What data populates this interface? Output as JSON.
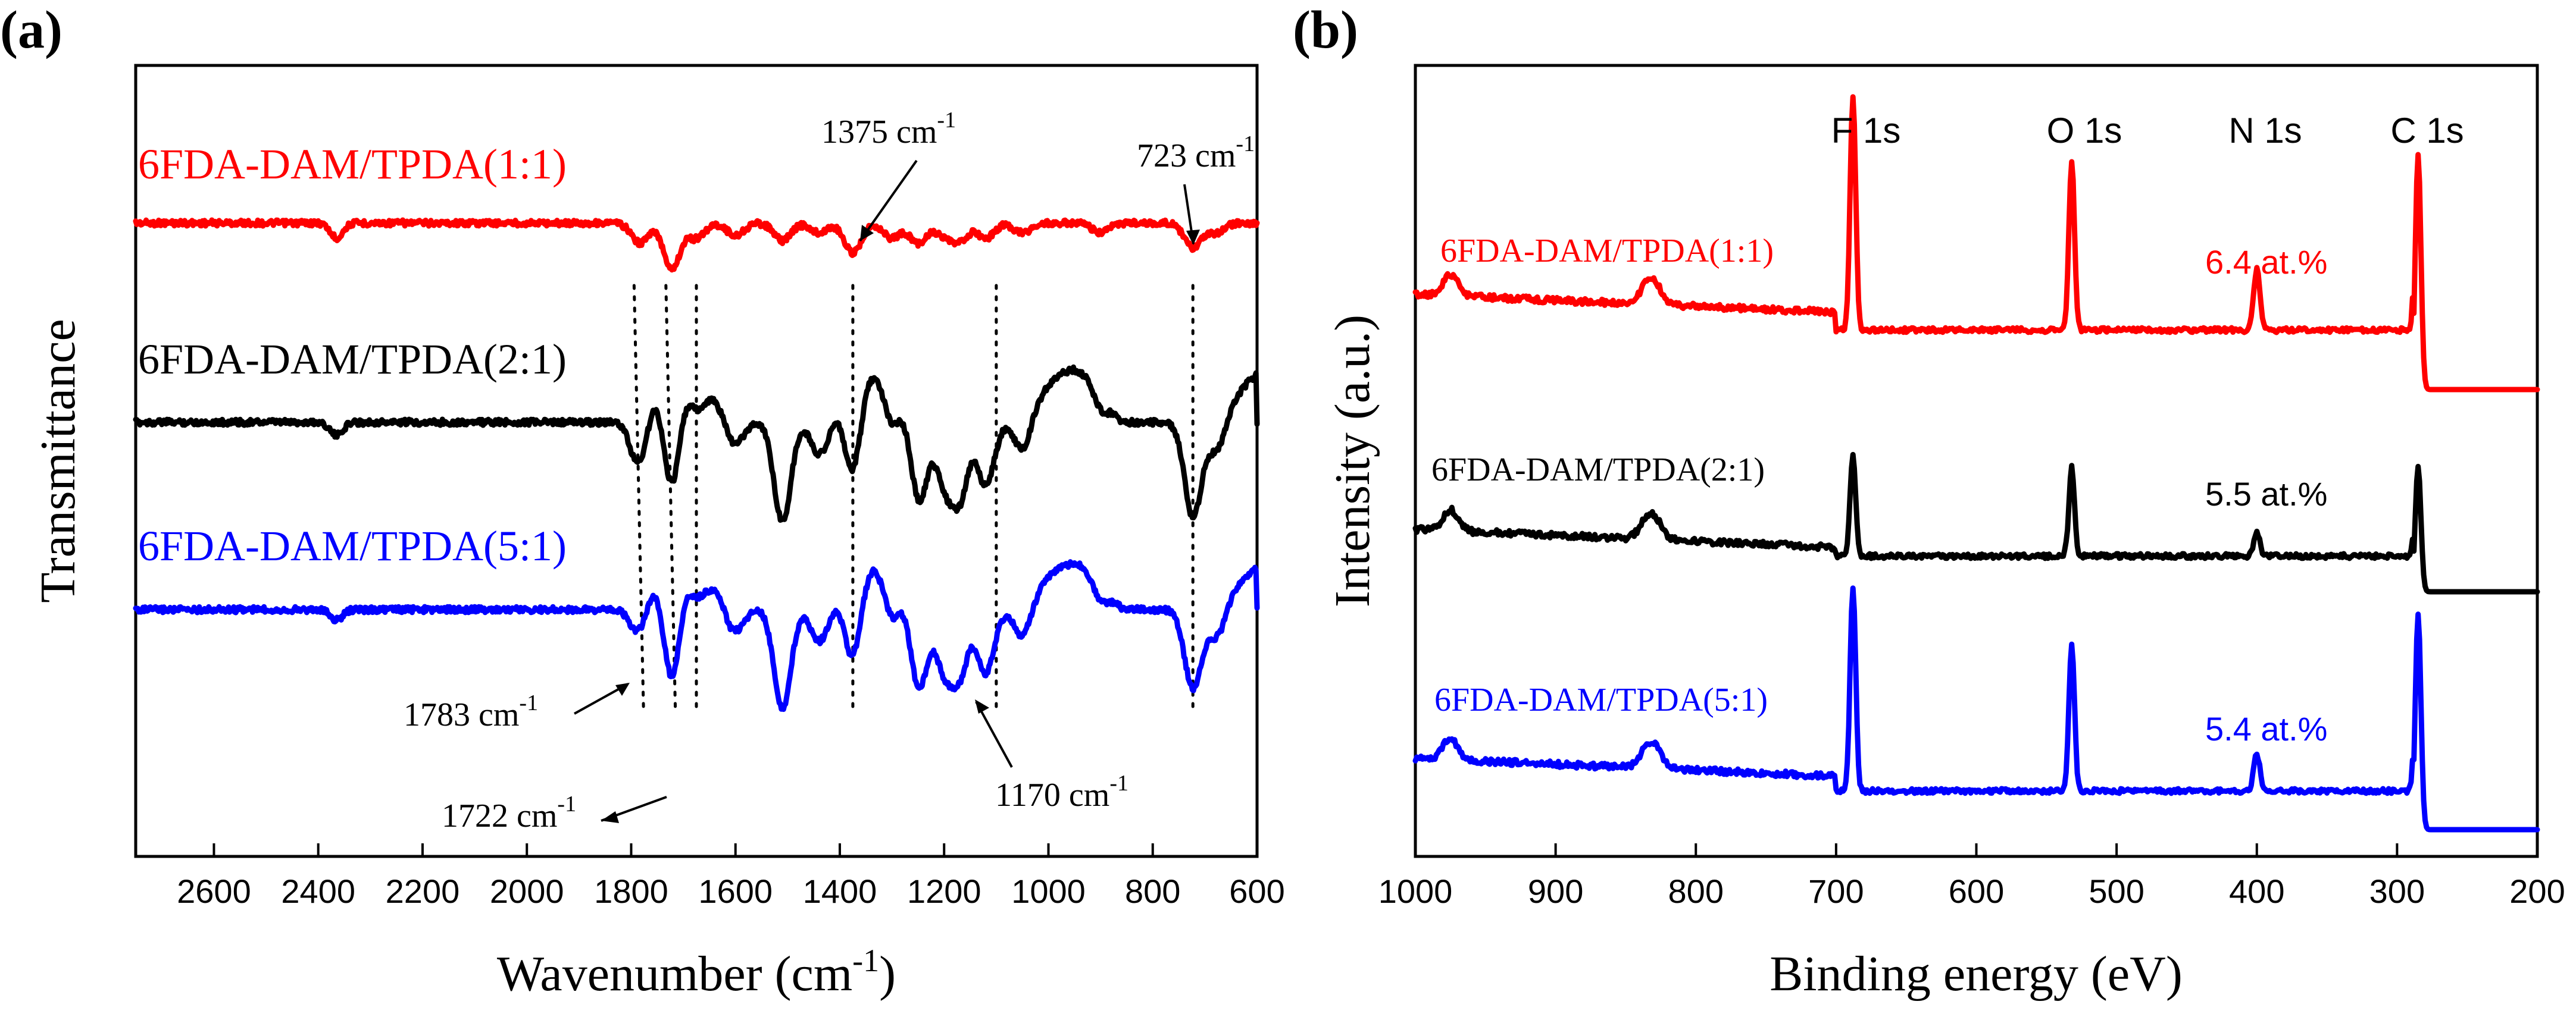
{
  "chart_data": [
    {
      "panel": "(a)",
      "type": "line",
      "xlabel": "Wavenumber (cm",
      "xlabel_sup": "-1",
      "xlabel_close": ")",
      "ylabel": "Transmittance",
      "xlim": [
        2750,
        600
      ],
      "xticks": [
        2600,
        2400,
        2200,
        2000,
        1800,
        1600,
        1400,
        1200,
        1000,
        800,
        600
      ],
      "series": [
        {
          "name": "6FDA-DAM/TPDA(1:1)",
          "color": "#ff0000",
          "baseline": 0.0,
          "peaks": [
            [
              2365,
              0.06
            ],
            [
              1783,
              0.08
            ],
            [
              1722,
              0.18
            ],
            [
              1675,
              0.06
            ],
            [
              1600,
              0.05
            ],
            [
              1510,
              0.07
            ],
            [
              1440,
              0.04
            ],
            [
              1375,
              0.12
            ],
            [
              1300,
              0.06
            ],
            [
              1250,
              0.08
            ],
            [
              1200,
              0.05
            ],
            [
              1170,
              0.07
            ],
            [
              1120,
              0.06
            ],
            [
              1050,
              0.04
            ],
            [
              900,
              0.04
            ],
            [
              723,
              0.1
            ],
            [
              680,
              0.04
            ]
          ]
        },
        {
          "name": "6FDA-DAM/TPDA(2:1)",
          "color": "#000000",
          "baseline": 0.0,
          "peaks": [
            [
              2365,
              0.05
            ],
            [
              1783,
              0.2
            ],
            [
              1722,
              0.42
            ],
            [
              1675,
              0.12
            ],
            [
              1600,
              0.08
            ],
            [
              1510,
              0.38
            ],
            [
              1440,
              0.12
            ],
            [
              1375,
              0.32
            ],
            [
              1300,
              0.18
            ],
            [
              1250,
              0.34
            ],
            [
              1200,
              0.22
            ],
            [
              1170,
              0.28
            ],
            [
              1120,
              0.24
            ],
            [
              1050,
              0.1
            ],
            [
              900,
              0.08
            ],
            [
              723,
              0.36
            ],
            [
              680,
              0.1
            ]
          ]
        },
        {
          "name": "6FDA-DAM/TPDA(5:1)",
          "color": "#0000ff",
          "baseline": 0.0,
          "peaks": [
            [
              2365,
              0.04
            ],
            [
              1783,
              0.12
            ],
            [
              1722,
              0.42
            ],
            [
              1675,
              0.1
            ],
            [
              1600,
              0.08
            ],
            [
              1510,
              0.38
            ],
            [
              1440,
              0.12
            ],
            [
              1375,
              0.3
            ],
            [
              1300,
              0.18
            ],
            [
              1250,
              0.34
            ],
            [
              1200,
              0.22
            ],
            [
              1170,
              0.24
            ],
            [
              1120,
              0.24
            ],
            [
              1050,
              0.1
            ],
            [
              900,
              0.08
            ],
            [
              723,
              0.3
            ],
            [
              680,
              0.1
            ]
          ]
        }
      ],
      "annotations": [
        {
          "text": "1375 cm",
          "sup": "-1",
          "at": 1375
        },
        {
          "text": "723 cm",
          "sup": "-1",
          "at": 723
        },
        {
          "text": "1783 cm",
          "sup": "-1",
          "at": 1783
        },
        {
          "text": "1722 cm",
          "sup": "-1",
          "at": 1722
        },
        {
          "text": "1170 cm",
          "sup": "-1",
          "at": 1170
        }
      ],
      "reference_lines": [
        1783,
        1722,
        1675,
        1375,
        1100,
        723
      ]
    },
    {
      "panel": "(b)",
      "type": "line",
      "xlabel": "Binding energy (eV)",
      "ylabel": "Intensity (a.u.)",
      "xlim": [
        1000,
        200
      ],
      "xticks": [
        1000,
        900,
        800,
        700,
        600,
        500,
        400,
        300,
        200
      ],
      "peak_labels": [
        {
          "text": "F 1s",
          "at": 688
        },
        {
          "text": "O 1s",
          "at": 532
        },
        {
          "text": "N 1s",
          "at": 400
        },
        {
          "text": "C 1s",
          "at": 285
        }
      ],
      "series": [
        {
          "name": "6FDA-DAM/TPDA(1:1)",
          "color": "#ff0000",
          "n_content": "6.4 at.%",
          "F": 1.0,
          "O": 0.72,
          "N": 0.26,
          "C": 1.0
        },
        {
          "name": "6FDA-DAM/TPDA(2:1)",
          "color": "#000000",
          "n_content": "5.5 at.%",
          "F": 0.62,
          "O": 0.55,
          "N": 0.14,
          "C": 0.78
        },
        {
          "name": "6FDA-DAM/TPDA(5:1)",
          "color": "#0000ff",
          "n_content": "5.4 at.%",
          "F": 1.0,
          "O": 0.72,
          "N": 0.18,
          "C": 1.05
        }
      ]
    }
  ]
}
